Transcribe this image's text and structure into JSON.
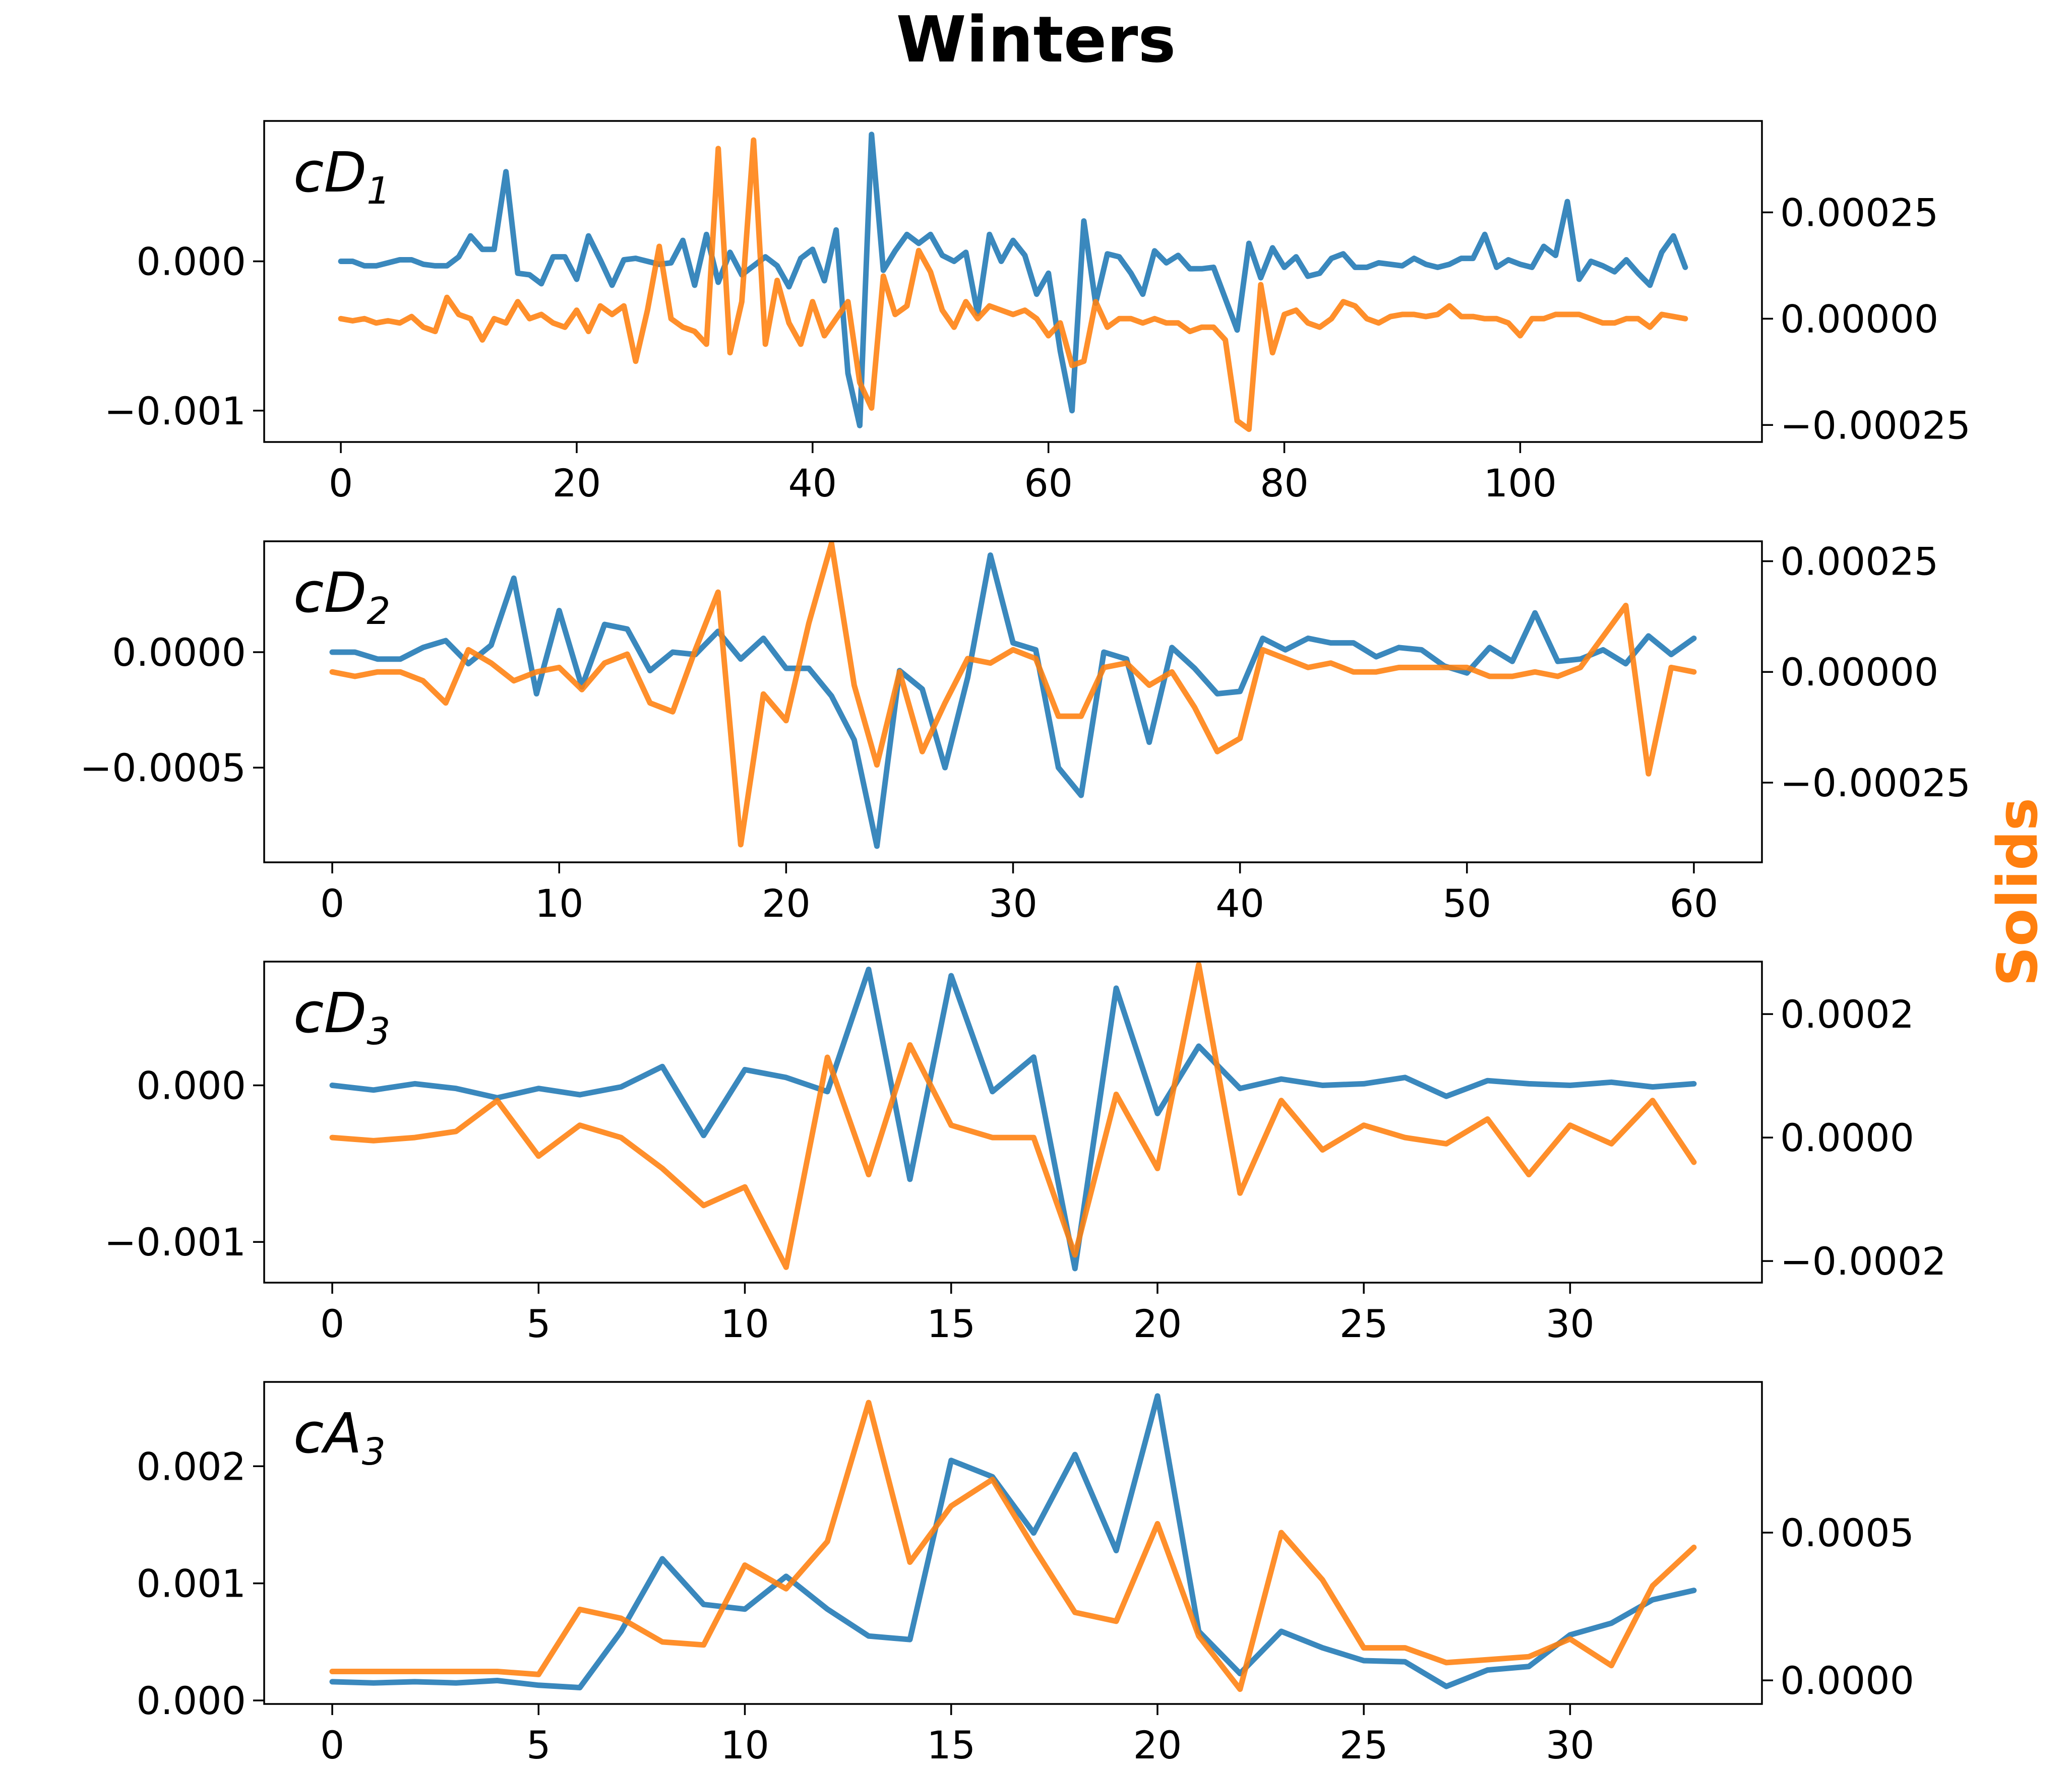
{
  "title": "Winters",
  "right_ylabel": "Solids",
  "colors": {
    "primary": "#1f77b4",
    "secondary": "#ff7f0e",
    "right_label": "#ff7f0e"
  },
  "chart_data": [
    {
      "type": "line",
      "panel": "cD",
      "panel_sub": "1",
      "xlim": [
        -6.5,
        120.5
      ],
      "ylim": [
        -0.00121,
        0.00094
      ],
      "y2lim": [
        -0.00029,
        0.000465
      ],
      "xticks": [
        0,
        20,
        40,
        60,
        80,
        100
      ],
      "xtick_labels": [
        "0",
        "20",
        "40",
        "60",
        "80",
        "100"
      ],
      "yticks": [
        -0.001,
        0.0
      ],
      "ytick_labels": [
        "−0.001",
        "0.000"
      ],
      "y2ticks": [
        -0.00025,
        0.0,
        0.00025
      ],
      "y2tick_labels": [
        "−0.00025",
        "0.00000",
        "0.00025"
      ],
      "series": [
        {
          "name": "primary",
          "axis": "left",
          "values": [
            0.0,
            0.0,
            -3e-05,
            -3e-05,
            -1e-05,
            1e-05,
            1e-05,
            -2e-05,
            -3e-05,
            -3e-05,
            3e-05,
            0.00017,
            8e-05,
            8e-05,
            0.0006,
            -8e-05,
            -9e-05,
            -0.00015,
            3e-05,
            3e-05,
            -0.00012,
            0.00017,
            1e-05,
            -0.00016,
            1e-05,
            2e-05,
            0.0,
            -2e-05,
            -1e-05,
            0.00014,
            -0.00016,
            0.00018,
            -0.00014,
            6e-05,
            -9e-05,
            -3e-05,
            3e-05,
            -3e-05,
            -0.00017,
            2e-05,
            8e-05,
            -0.00013,
            0.00021,
            -0.00075,
            -0.0011,
            0.00085,
            -6e-05,
            7e-05,
            0.00018,
            0.00012,
            0.00018,
            4e-05,
            0.0,
            6e-05,
            -0.00035,
            0.00018,
            0.0,
            0.00014,
            4e-05,
            -0.00022,
            -8e-05,
            -0.0006,
            -0.001,
            0.00027,
            -0.00028,
            5e-05,
            3e-05,
            -8e-05,
            -0.00022,
            7e-05,
            -1e-05,
            4e-05,
            -5e-05,
            -5e-05,
            -4e-05,
            -0.00025,
            -0.00046,
            0.00012,
            -0.00011,
            9e-05,
            -4e-05,
            3e-05,
            -0.0001,
            -8e-05,
            2e-05,
            5e-05,
            -4e-05,
            -4e-05,
            -1e-05,
            -2e-05,
            -3e-05,
            2e-05,
            -2e-05,
            -4e-05,
            -2e-05,
            2e-05,
            2e-05,
            0.00018,
            -4e-05,
            1e-05,
            -2e-05,
            -4e-05,
            0.0001,
            4e-05,
            0.0004,
            -0.00012,
            0.0,
            -3e-05,
            -7e-05,
            1e-05,
            -8e-05,
            -0.00016,
            6e-05,
            0.00017,
            -4e-05
          ]
        },
        {
          "name": "secondary",
          "axis": "right",
          "values": [
            0.0,
            -5e-06,
            0.0,
            -1e-05,
            -5e-06,
            -1e-05,
            5e-06,
            -2e-05,
            -3e-05,
            5e-05,
            1e-05,
            0.0,
            -5e-05,
            0.0,
            -1e-05,
            4e-05,
            0.0,
            1e-05,
            -1e-05,
            -2e-05,
            2e-05,
            -3e-05,
            3e-05,
            1e-05,
            3e-05,
            -0.0001,
            2e-05,
            0.00017,
            0.0,
            -2e-05,
            -3e-05,
            -6e-05,
            0.0004,
            -8e-05,
            4e-05,
            0.00042,
            -6e-05,
            9e-05,
            -1e-05,
            -6e-05,
            4e-05,
            -4e-05,
            0.0,
            4e-05,
            -0.00015,
            -0.00021,
            0.0001,
            1e-05,
            3e-05,
            0.00016,
            0.00011,
            2e-05,
            -2e-05,
            4e-05,
            0.0,
            3e-05,
            2e-05,
            1e-05,
            2e-05,
            0.0,
            -4e-05,
            -1e-05,
            -0.00011,
            -0.0001,
            4e-05,
            -2e-05,
            0.0,
            0.0,
            -1e-05,
            0.0,
            -1e-05,
            -1e-05,
            -3e-05,
            -2e-05,
            -2e-05,
            -5e-05,
            -0.00024,
            -0.00026,
            8e-05,
            -8e-05,
            1e-05,
            2e-05,
            -1e-05,
            -2e-05,
            0.0,
            4e-05,
            3e-05,
            0.0,
            -1e-05,
            5e-06,
            1e-05,
            1e-05,
            5e-06,
            1e-05,
            3e-05,
            5e-06,
            5e-06,
            0.0,
            0.0,
            -1e-05,
            -4e-05,
            0.0,
            0.0,
            1e-05,
            1e-05,
            1e-05,
            0.0,
            -1e-05,
            -1e-05,
            0.0,
            0.0,
            -2e-05,
            1e-05,
            5e-06,
            0.0
          ]
        }
      ]
    },
    {
      "type": "line",
      "panel": "cD",
      "panel_sub": "2",
      "xlim": [
        -3,
        63
      ],
      "ylim": [
        -0.00091,
        0.00048
      ],
      "y2lim": [
        -0.00043,
        0.000295
      ],
      "xticks": [
        0,
        10,
        20,
        30,
        40,
        50,
        60
      ],
      "xtick_labels": [
        "0",
        "10",
        "20",
        "30",
        "40",
        "50",
        "60"
      ],
      "yticks": [
        -0.0005,
        0.0
      ],
      "ytick_labels": [
        "−0.0005",
        "0.0000"
      ],
      "y2ticks": [
        -0.00025,
        0.0,
        0.00025
      ],
      "y2tick_labels": [
        "−0.00025",
        "0.00000",
        "0.00025"
      ],
      "series": [
        {
          "name": "primary",
          "axis": "left",
          "values": [
            0.0,
            0.0,
            -3e-05,
            -3e-05,
            2e-05,
            5e-05,
            -5e-05,
            3e-05,
            0.00032,
            -0.00018,
            0.00018,
            -0.00015,
            0.00012,
            0.0001,
            -8e-05,
            0.0,
            -1e-05,
            9e-05,
            -3e-05,
            6e-05,
            -7e-05,
            -7e-05,
            -0.00019,
            -0.00038,
            -0.00084,
            -8e-05,
            -0.00016,
            -0.0005,
            -0.00011,
            0.00042,
            4e-05,
            1e-05,
            -0.0005,
            -0.00062,
            0.0,
            -3e-05,
            -0.00039,
            2e-05,
            -7e-05,
            -0.00018,
            -0.00017,
            6e-05,
            1e-05,
            6e-05,
            4e-05,
            4e-05,
            -2e-05,
            2e-05,
            1e-05,
            -6e-05,
            -9e-05,
            2e-05,
            -4e-05,
            0.00017,
            -4e-05,
            -3e-05,
            1e-05,
            -5e-05,
            7e-05,
            -1e-05,
            6e-05
          ]
        },
        {
          "name": "secondary",
          "axis": "right",
          "values": [
            0.0,
            -1e-05,
            0.0,
            0.0,
            -2e-05,
            -7e-05,
            5e-05,
            2e-05,
            -2e-05,
            0.0,
            1e-05,
            -4e-05,
            2e-05,
            4e-05,
            -7e-05,
            -9e-05,
            5e-05,
            0.00018,
            -0.00039,
            -5e-05,
            -0.00011,
            0.00011,
            0.00029,
            -3e-05,
            -0.00021,
            0.0,
            -0.00018,
            -7e-05,
            3e-05,
            2e-05,
            5e-05,
            3e-05,
            -0.0001,
            -0.0001,
            1e-05,
            2e-05,
            -3e-05,
            0.0,
            -8e-05,
            -0.00018,
            -0.00015,
            5e-05,
            3e-05,
            1e-05,
            2e-05,
            0.0,
            0.0,
            1e-05,
            1e-05,
            1e-05,
            1e-05,
            -1e-05,
            -1e-05,
            0.0,
            -1e-05,
            1e-05,
            8e-05,
            0.00015,
            -0.00023,
            1e-05,
            0.0
          ]
        }
      ]
    },
    {
      "type": "line",
      "panel": "cD",
      "panel_sub": "3",
      "xlim": [
        -1.65,
        34.65
      ],
      "ylim": [
        -0.00126,
        0.00079
      ],
      "y2lim": [
        -0.000235,
        0.000285
      ],
      "xticks": [
        0,
        5,
        10,
        15,
        20,
        25,
        30
      ],
      "xtick_labels": [
        "0",
        "5",
        "10",
        "15",
        "20",
        "25",
        "30"
      ],
      "yticks": [
        -0.001,
        0.0
      ],
      "ytick_labels": [
        "−0.001",
        "0.000"
      ],
      "y2ticks": [
        -0.0002,
        0.0,
        0.0002
      ],
      "y2tick_labels": [
        "−0.0002",
        "0.0000",
        "0.0002"
      ],
      "series": [
        {
          "name": "primary",
          "axis": "left",
          "values": [
            0.0,
            -3e-05,
            1e-05,
            -2e-05,
            -8e-05,
            -2e-05,
            -6e-05,
            -1e-05,
            0.00012,
            -0.00032,
            0.0001,
            5e-05,
            -4e-05,
            0.00074,
            -0.0006,
            0.0007,
            -4e-05,
            0.00018,
            -0.00117,
            0.00062,
            -0.00018,
            0.00025,
            -2e-05,
            4e-05,
            0.0,
            1e-05,
            5e-05,
            -7e-05,
            3e-05,
            1e-05,
            0.0,
            2e-05,
            -1e-05,
            1e-05
          ]
        },
        {
          "name": "secondary",
          "axis": "right",
          "values": [
            0.0,
            -5e-06,
            0.0,
            1e-05,
            6e-05,
            -3e-05,
            2e-05,
            0.0,
            -5e-05,
            -0.00011,
            -8e-05,
            -0.00021,
            0.00013,
            -6e-05,
            0.00015,
            2e-05,
            0.0,
            0.0,
            -0.00019,
            7e-05,
            -5e-05,
            0.00028,
            -9e-05,
            6e-05,
            -2e-05,
            2e-05,
            0.0,
            -1e-05,
            3e-05,
            -6e-05,
            2e-05,
            -1e-05,
            6e-05,
            -4e-05
          ]
        }
      ]
    },
    {
      "type": "line",
      "panel": "cA",
      "panel_sub": "3",
      "xlim": [
        -1.65,
        34.65
      ],
      "ylim": [
        -3e-05,
        0.00272
      ],
      "y2lim": [
        -8e-05,
        0.00101
      ],
      "xticks": [
        0,
        5,
        10,
        15,
        20,
        25,
        30
      ],
      "xtick_labels": [
        "0",
        "5",
        "10",
        "15",
        "20",
        "25",
        "30"
      ],
      "yticks": [
        0.0,
        0.001,
        0.002
      ],
      "ytick_labels": [
        "0.000",
        "0.001",
        "0.002"
      ],
      "y2ticks": [
        0.0,
        0.0005
      ],
      "y2tick_labels": [
        "0.0000",
        "0.0005"
      ],
      "series": [
        {
          "name": "primary",
          "axis": "left",
          "values": [
            0.00016,
            0.00015,
            0.00016,
            0.00015,
            0.00017,
            0.00013,
            0.00011,
            0.00059,
            0.00121,
            0.00082,
            0.00078,
            0.00106,
            0.00078,
            0.00055,
            0.00052,
            0.00205,
            0.00191,
            0.00143,
            0.0021,
            0.00128,
            0.0026,
            0.00059,
            0.00023,
            0.00059,
            0.00045,
            0.00034,
            0.00033,
            0.00012,
            0.00026,
            0.00029,
            0.00056,
            0.00066,
            0.00086,
            0.00094
          ]
        },
        {
          "name": "secondary",
          "axis": "right",
          "values": [
            3e-05,
            3e-05,
            3e-05,
            3e-05,
            3e-05,
            2e-05,
            0.00024,
            0.00021,
            0.00013,
            0.00012,
            0.00039,
            0.00031,
            0.00047,
            0.00094,
            0.0004,
            0.00059,
            0.00068,
            0.00045,
            0.00023,
            0.0002,
            0.00053,
            0.00015,
            -3e-05,
            0.0005,
            0.00034,
            0.00011,
            0.00011,
            6e-05,
            7e-05,
            8e-05,
            0.00014,
            5e-05,
            0.00032,
            0.00045
          ]
        }
      ]
    }
  ]
}
